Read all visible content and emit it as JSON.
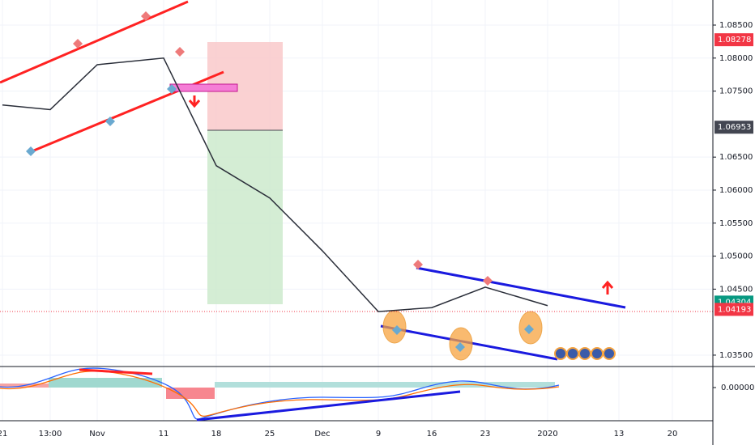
{
  "chart_data": {
    "type": "line",
    "categories": [
      "21",
      "13:00",
      "Nov",
      "11",
      "18",
      "25",
      "Dec",
      "9",
      "16",
      "23",
      "2020",
      "13",
      "20"
    ],
    "values": [
      1.0729,
      1.0722,
      1.079,
      1.08,
      1.0637,
      1.0588,
      1.0508,
      1.0416,
      1.0422,
      1.0453,
      1.0425,
      null,
      null
    ],
    "color": "#2a2e39",
    "ylim": [
      1.0334,
      1.0888
    ],
    "yticks": [
      {
        "value": 1.085,
        "label": "1.08500"
      },
      {
        "value": 1.08,
        "label": "1.08000"
      },
      {
        "value": 1.075,
        "label": "1.07500"
      },
      {
        "value": 1.065,
        "label": "1.06500"
      },
      {
        "value": 1.06,
        "label": "1.06000"
      },
      {
        "value": 1.055,
        "label": "1.05500"
      },
      {
        "value": 1.05,
        "label": "1.05000"
      },
      {
        "value": 1.045,
        "label": "1.04500"
      },
      {
        "value": 1.035,
        "label": "1.03500"
      }
    ],
    "price_labels": [
      {
        "value": 1.08278,
        "color": "#f23645"
      },
      {
        "value": 1.06953,
        "color": "#434651"
      },
      {
        "value": 1.04304,
        "color": "#089981"
      },
      {
        "value": 1.04193,
        "color": "#f23645"
      }
    ],
    "indicator_yticks": [
      {
        "value": 0,
        "label": "0.00000"
      }
    ],
    "grid": true
  }
}
